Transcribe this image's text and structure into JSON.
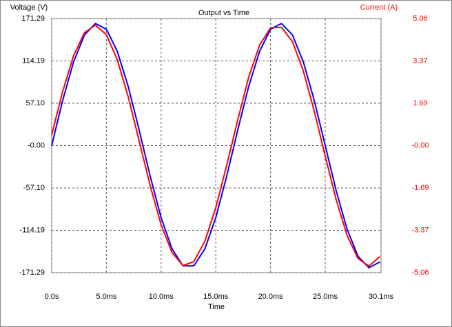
{
  "chart_data": {
    "type": "line",
    "title": "Output vs Time",
    "xlabel": "Time",
    "ylabel": "Voltage (V)",
    "y2label": "Current (A)",
    "x": [
      0,
      1,
      2,
      3,
      4,
      5,
      6,
      7,
      8,
      9,
      10,
      11,
      12,
      13,
      14,
      15,
      16,
      17,
      18,
      19,
      20,
      21,
      22,
      23,
      24,
      25,
      26,
      27,
      28,
      29,
      30
    ],
    "series": [
      {
        "name": "Voltage (V)",
        "color": "#0000ff",
        "values": [
          0,
          60.7,
          112.9,
          149.3,
          164.7,
          156.9,
          127.1,
          79.5,
          20.7,
          -41.0,
          -97.0,
          -139.3,
          -162.1,
          -162.1,
          -139.3,
          -97.0,
          -41.0,
          20.7,
          79.5,
          127.1,
          156.9,
          164.7,
          149.3,
          112.9,
          60.7,
          0,
          -60.7,
          -112.9,
          -149.3,
          -164.7,
          -156.9
        ]
      },
      {
        "name": "Current (A)",
        "color": "#ff0000",
        "axis": "y2",
        "values": [
          0.42,
          2.15,
          3.58,
          4.5,
          4.8,
          4.42,
          3.42,
          1.94,
          0.18,
          -1.59,
          -3.15,
          -4.26,
          -4.78,
          -4.62,
          -3.81,
          -2.47,
          -0.78,
          1.01,
          2.72,
          4.0,
          4.69,
          4.71,
          4.15,
          2.97,
          1.37,
          -0.42,
          -2.15,
          -3.58,
          -4.5,
          -4.8,
          -4.42
        ]
      }
    ],
    "xlim": [
      0,
      30.1
    ],
    "xticks": [
      {
        "value": 0,
        "label": "0.0s"
      },
      {
        "value": 5,
        "label": "5.0ms"
      },
      {
        "value": 10,
        "label": "10.0ms"
      },
      {
        "value": 15,
        "label": "15.0ms"
      },
      {
        "value": 20,
        "label": "20.0ms"
      },
      {
        "value": 25,
        "label": "25.0ms"
      },
      {
        "value": 30.1,
        "label": "30.1ms"
      }
    ],
    "ylim": [
      -171.29,
      171.29
    ],
    "yticks": [
      171.29,
      114.19,
      {
        "value": 57.1,
        "label": "57.10"
      },
      {
        "value": 0,
        "label": "-0.00"
      },
      {
        "value": -57.1,
        "label": "-57.10"
      },
      -114.19,
      -171.29
    ],
    "y2lim": [
      -5.06,
      5.06
    ],
    "y2ticks": [
      5.06,
      3.37,
      1.69,
      {
        "value": 0,
        "label": "-0.00"
      },
      -1.69,
      -3.37,
      -5.06
    ],
    "grid": true
  }
}
